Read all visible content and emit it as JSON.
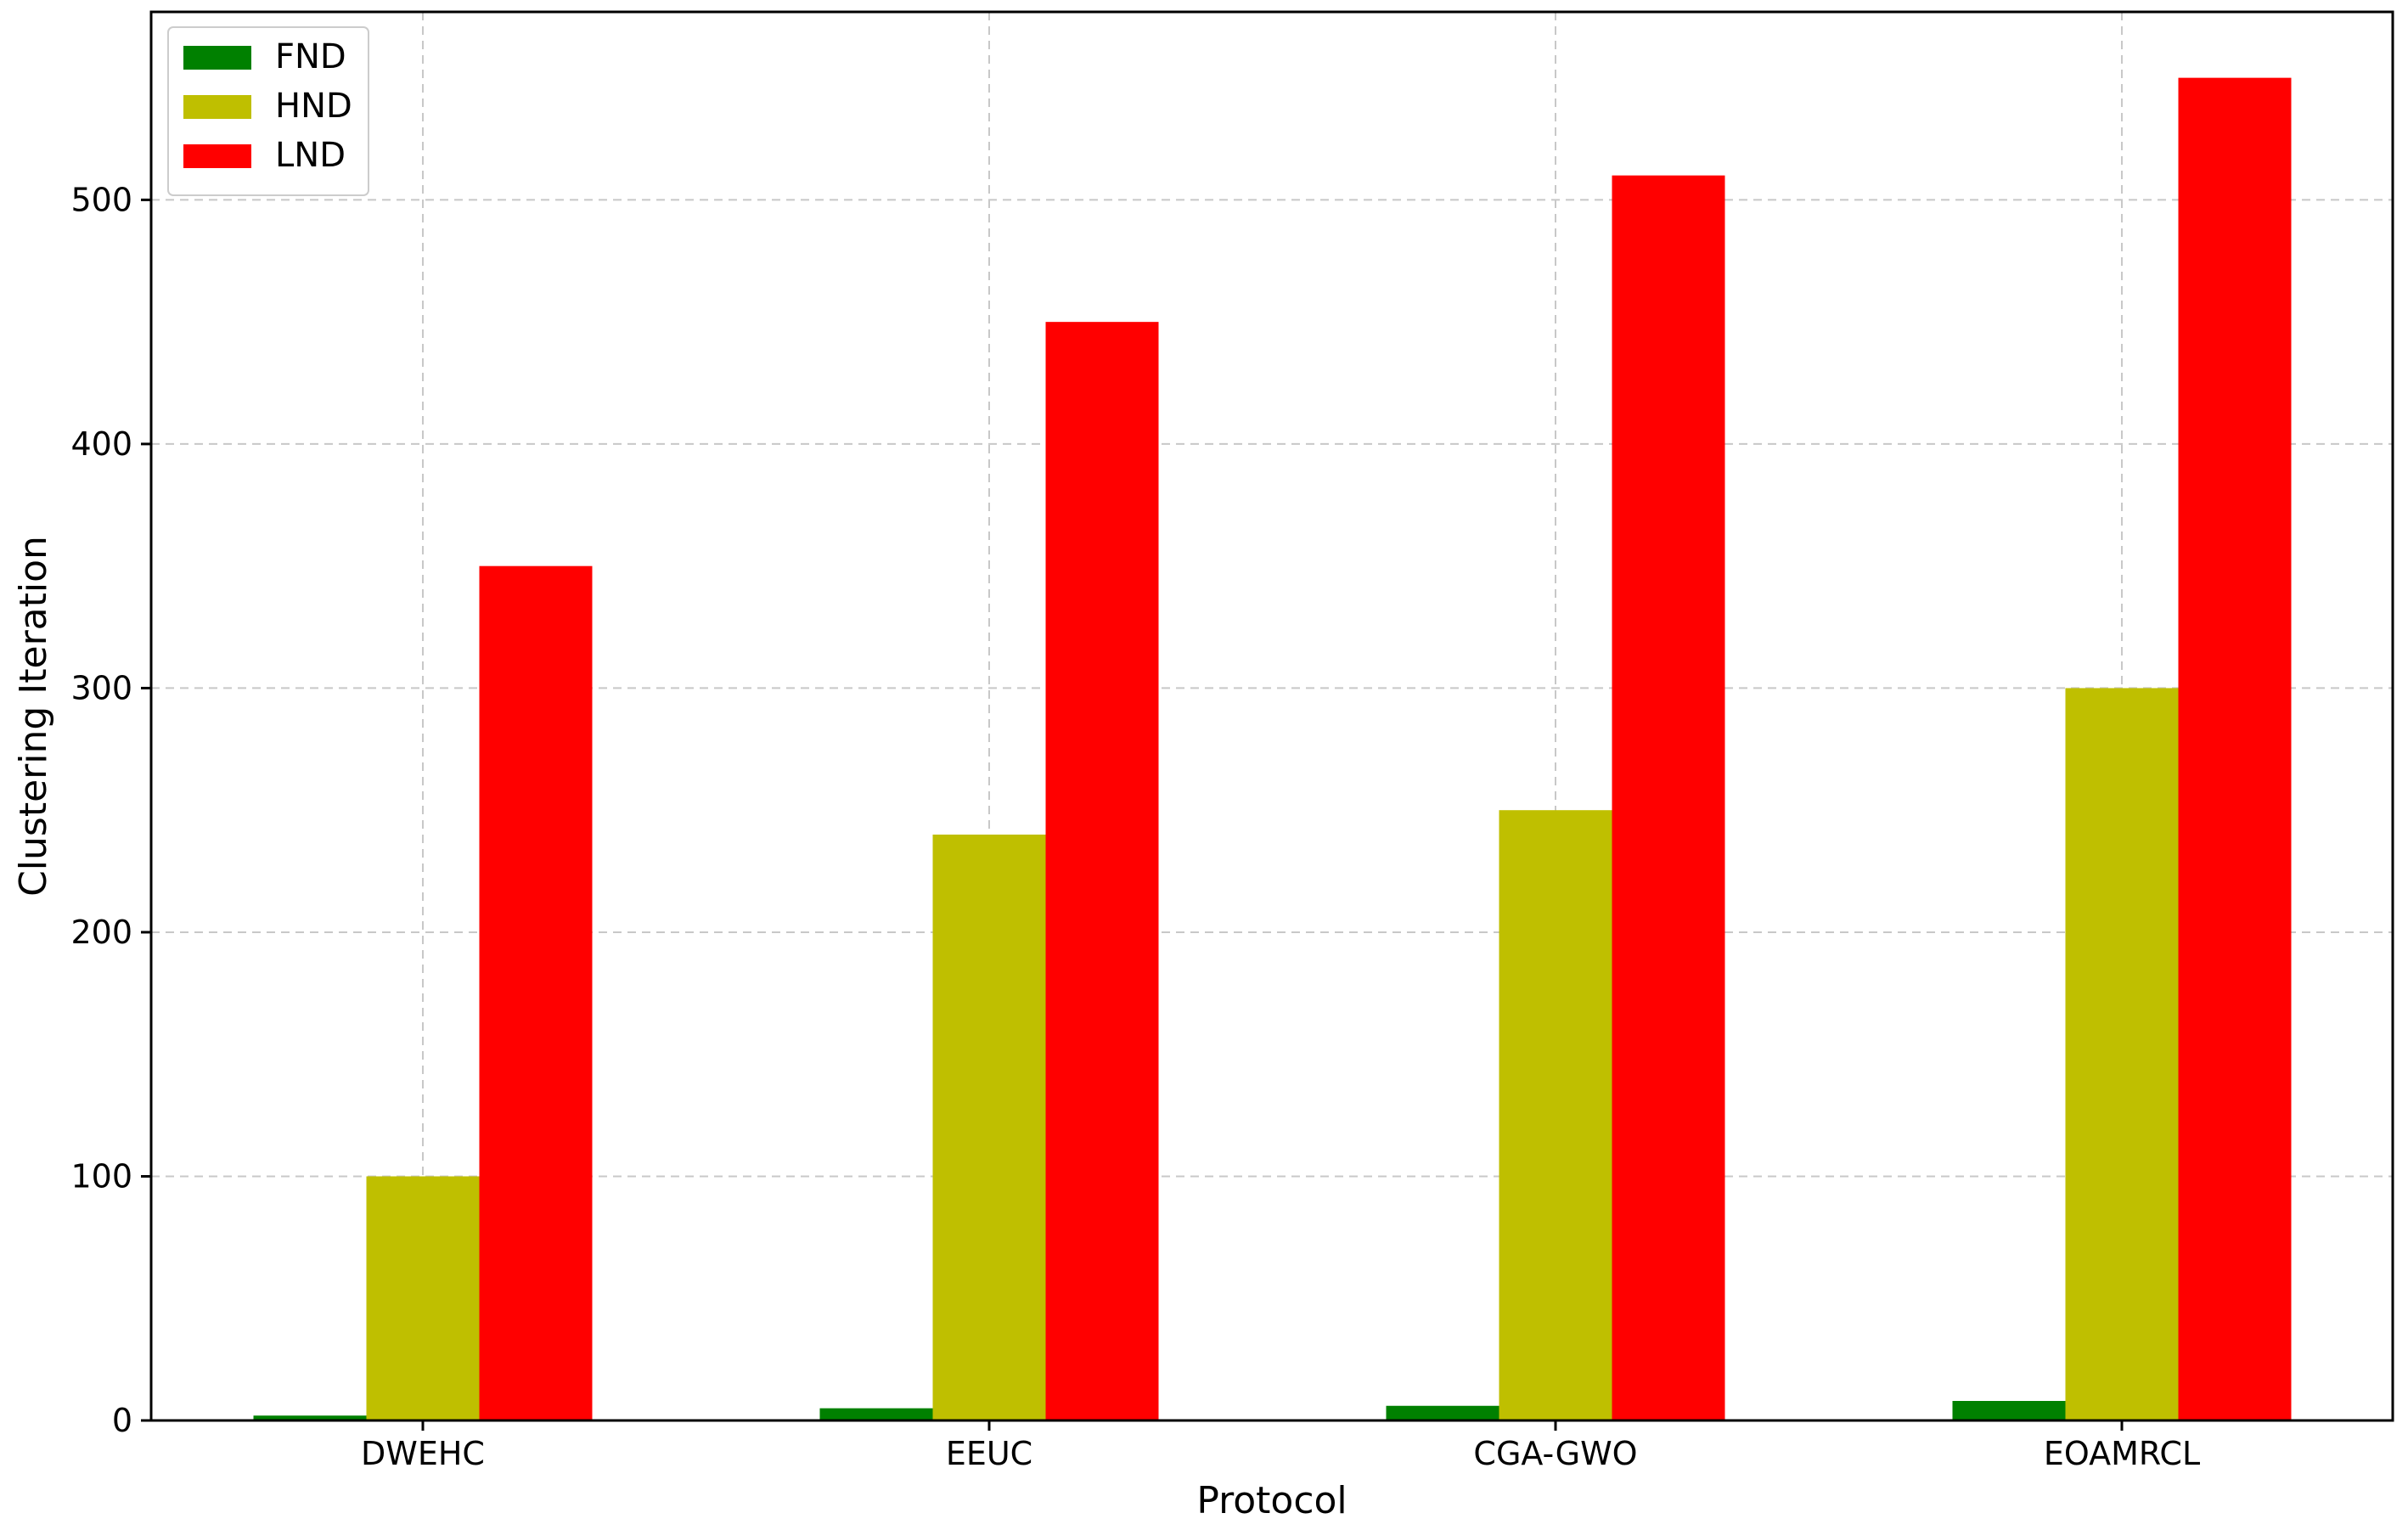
{
  "chart_data": {
    "type": "bar",
    "title": "",
    "xlabel": "Protocol",
    "ylabel": "Clustering Iteration",
    "categories": [
      "DWEHC",
      "EEUC",
      "CGA-GWO",
      "EOAMRCL"
    ],
    "series": [
      {
        "name": "FND",
        "color": "#008000",
        "values": [
          2,
          5,
          6,
          8
        ]
      },
      {
        "name": "HND",
        "color": "#bfbf00",
        "values": [
          100,
          240,
          250,
          300
        ]
      },
      {
        "name": "LND",
        "color": "#ff0000",
        "values": [
          350,
          450,
          510,
          550
        ]
      }
    ],
    "ylim": [
      0,
      577
    ],
    "yticks": [
      0,
      100,
      200,
      300,
      400,
      500
    ],
    "grid": true,
    "legend_position": "top-left"
  }
}
